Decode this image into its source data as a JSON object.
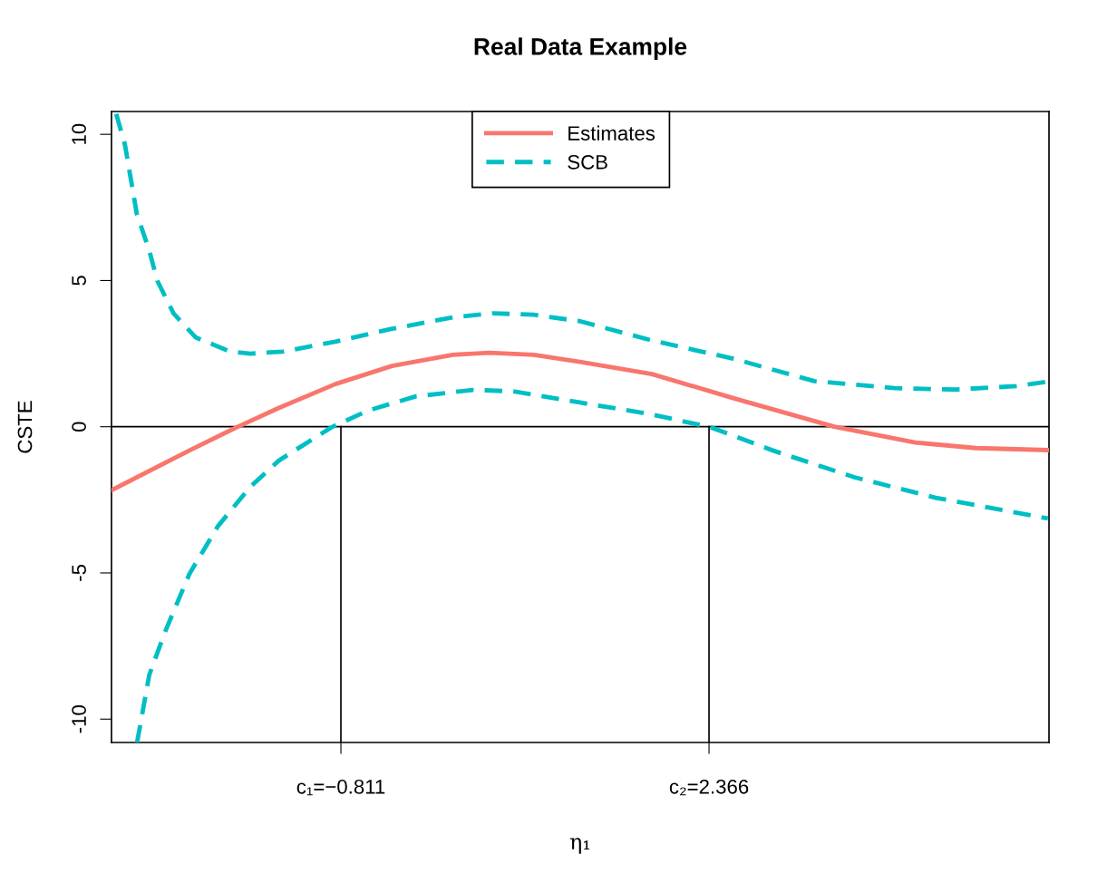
{
  "chart_data": {
    "type": "line",
    "title": "Real Data Example",
    "xlabel": "η₁",
    "ylabel": "CSTE",
    "xlim": [
      -2.791,
      5.3
    ],
    "ylim": [
      -10.8,
      10.78
    ],
    "xticks": [
      {
        "value": -0.811,
        "label": "c₁=−0.811"
      },
      {
        "value": 2.366,
        "label": "c₂=2.366"
      }
    ],
    "yticks": [
      -10,
      -5,
      0,
      5,
      10
    ],
    "grid": false,
    "legend": "top",
    "tick_labels": true,
    "ref_lines": [
      {
        "axis": "y",
        "value": 0,
        "color": "#000000"
      },
      {
        "axis": "x",
        "value": -0.811,
        "color": "#000000"
      },
      {
        "axis": "x",
        "value": 2.366,
        "color": "#000000"
      }
    ],
    "series": [
      {
        "name": "Estimates",
        "color": "#f8766d",
        "line_style": "solid",
        "x": [
          -2.79,
          -2.118,
          -1.711,
          -1.347,
          -0.858,
          -0.369,
          0.155,
          0.469,
          0.853,
          1.251,
          1.873,
          2.574,
          3.446,
          4.146,
          4.669,
          5.29
        ],
        "values": [
          -2.17,
          -0.81,
          -0.02,
          0.64,
          1.46,
          2.08,
          2.46,
          2.53,
          2.46,
          2.22,
          1.8,
          0.98,
          0.0,
          -0.54,
          -0.73,
          -0.8
        ]
      },
      {
        "name": "SCB",
        "color": "#00bfc4",
        "line_style": "dashed",
        "x": [
          -2.75,
          -2.674,
          -2.572,
          -2.465,
          -2.395,
          -2.256,
          -2.063,
          -1.766,
          -1.594,
          -1.312,
          -0.858,
          -0.369,
          0.155,
          0.503,
          0.853,
          1.251,
          1.873,
          2.574,
          3.273,
          3.97,
          4.494,
          5.018,
          5.29
        ],
        "values": [
          10.7,
          9.63,
          7.27,
          6.03,
          4.99,
          3.88,
          3.05,
          2.57,
          2.5,
          2.57,
          2.91,
          3.35,
          3.74,
          3.88,
          3.83,
          3.61,
          2.95,
          2.33,
          1.56,
          1.32,
          1.27,
          1.39,
          1.54
        ]
      },
      {
        "color": "#00bfc4",
        "line_style": "dashed",
        "x": [
          -2.57,
          -2.465,
          -2.325,
          -2.118,
          -1.872,
          -1.594,
          -1.347,
          -0.893,
          -0.579,
          -0.162,
          0.331,
          0.675,
          1.251,
          1.873,
          2.382,
          2.922,
          3.622,
          4.322,
          5.29
        ],
        "values": [
          -10.8,
          -8.49,
          -6.98,
          -5.03,
          -3.4,
          -2.06,
          -1.16,
          -0.02,
          0.55,
          1.04,
          1.26,
          1.21,
          0.83,
          0.42,
          -0.02,
          -0.82,
          -1.73,
          -2.43,
          -3.14
        ]
      }
    ]
  }
}
